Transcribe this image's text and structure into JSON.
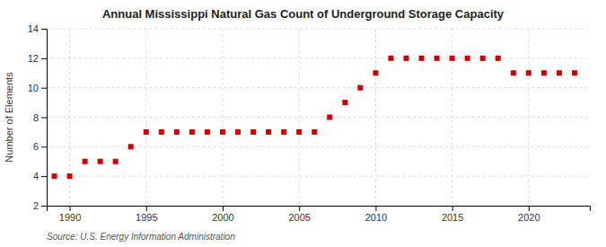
{
  "chart_data": {
    "type": "scatter",
    "title": "Annual Mississippi Natural Gas Count of Underground Storage Capacity",
    "y_label": "Number of Elements",
    "source": "Source: U.S. Energy Information Administration",
    "x": [
      1989,
      1990,
      1991,
      1992,
      1993,
      1994,
      1995,
      1996,
      1997,
      1998,
      1999,
      2000,
      2001,
      2002,
      2003,
      2004,
      2005,
      2006,
      2007,
      2008,
      2009,
      2010,
      2011,
      2012,
      2013,
      2014,
      2015,
      2016,
      2017,
      2018,
      2019,
      2020,
      2021,
      2022,
      2023
    ],
    "values": [
      4,
      4,
      5,
      5,
      5,
      6,
      7,
      7,
      7,
      7,
      7,
      7,
      7,
      7,
      7,
      7,
      7,
      7,
      8,
      9,
      10,
      11,
      12,
      12,
      12,
      12,
      12,
      12,
      12,
      12,
      11,
      11,
      11,
      11,
      11
    ],
    "color": "#cc0000",
    "marker": "square",
    "grid": true,
    "xlim": [
      1988.5,
      2024
    ],
    "xticks": [
      1990,
      1995,
      2000,
      2005,
      2010,
      2015,
      2020
    ],
    "ylim": [
      2,
      14
    ],
    "yticks": [
      2,
      4,
      6,
      8,
      10,
      12,
      14
    ]
  }
}
